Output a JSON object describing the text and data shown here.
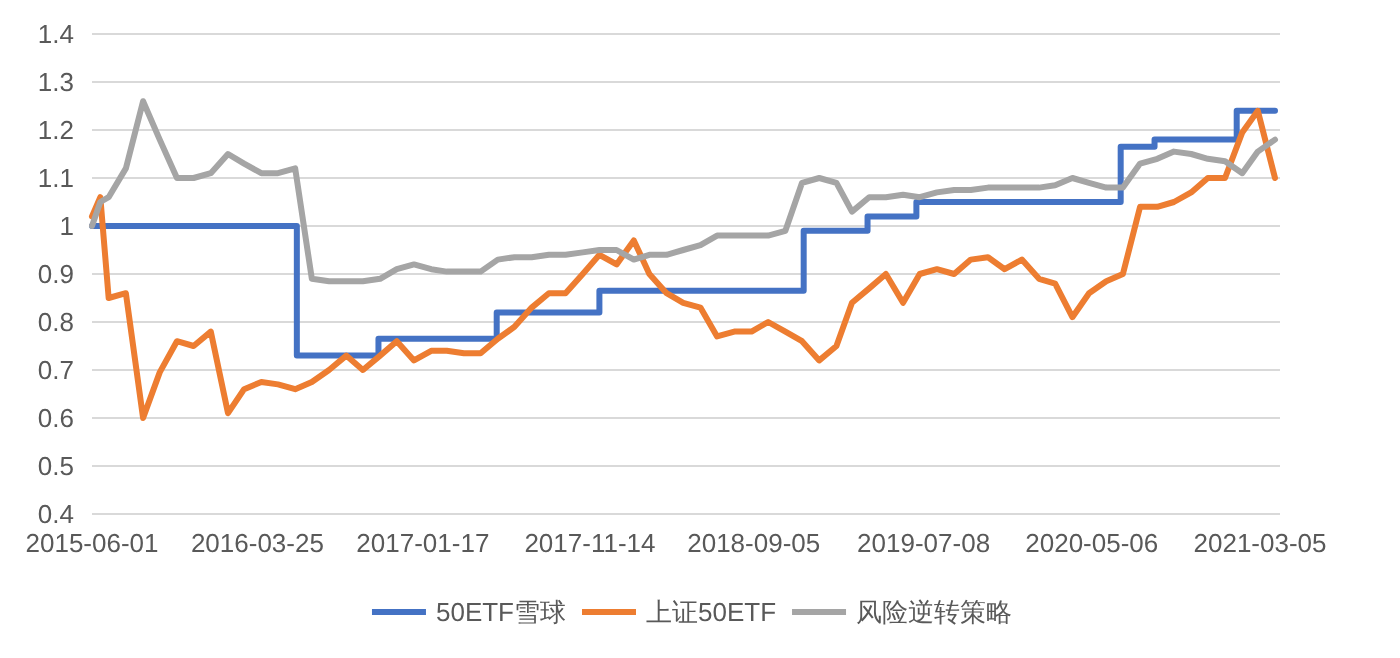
{
  "chart_data": {
    "type": "line",
    "x": [
      "2015-06-01",
      "2015-06-16",
      "2015-07-01",
      "2015-08-01",
      "2015-09-01",
      "2015-10-01",
      "2015-11-01",
      "2015-12-01",
      "2016-01-01",
      "2016-02-01",
      "2016-03-01",
      "2016-04-01",
      "2016-05-01",
      "2016-06-01",
      "2016-07-01",
      "2016-08-01",
      "2016-09-01",
      "2016-10-01",
      "2016-11-01",
      "2016-12-01",
      "2017-01-01",
      "2017-02-01",
      "2017-03-01",
      "2017-04-01",
      "2017-05-01",
      "2017-06-01",
      "2017-07-01",
      "2017-08-01",
      "2017-09-01",
      "2017-10-01",
      "2017-11-01",
      "2017-12-01",
      "2018-01-01",
      "2018-02-01",
      "2018-03-01",
      "2018-04-01",
      "2018-05-01",
      "2018-06-01",
      "2018-07-01",
      "2018-08-01",
      "2018-09-01",
      "2018-10-01",
      "2018-11-01",
      "2018-12-01",
      "2019-01-01",
      "2019-02-01",
      "2019-03-01",
      "2019-04-01",
      "2019-05-01",
      "2019-06-01",
      "2019-07-01",
      "2019-08-01",
      "2019-09-01",
      "2019-10-01",
      "2019-11-01",
      "2019-12-01",
      "2020-01-01",
      "2020-02-01",
      "2020-03-01",
      "2020-04-01",
      "2020-05-01",
      "2020-06-01",
      "2020-07-01",
      "2020-08-01",
      "2020-09-01",
      "2020-10-01",
      "2020-11-01",
      "2020-12-01",
      "2021-01-01",
      "2021-02-01",
      "2021-03-01",
      "2021-04-01"
    ],
    "series": [
      {
        "name": "50ETF雪球",
        "type": "step",
        "color": "#4472c4",
        "x": [
          "2015-06-01",
          "2016-06-04",
          "2016-10-29",
          "2017-05-30",
          "2017-12-01",
          "2018-12-04",
          "2019-03-29",
          "2019-06-25",
          "2020-06-27",
          "2020-08-27",
          "2021-01-22",
          "2021-04-01"
        ],
        "values": [
          1.0,
          0.73,
          0.765,
          0.82,
          0.865,
          0.99,
          1.02,
          1.05,
          1.165,
          1.18,
          1.24,
          1.24
        ]
      },
      {
        "name": "上证50ETF",
        "color": "#ed7d31",
        "values": [
          1.02,
          1.06,
          0.85,
          0.86,
          0.6,
          0.695,
          0.76,
          0.75,
          0.78,
          0.61,
          0.66,
          0.675,
          0.67,
          0.66,
          0.675,
          0.7,
          0.73,
          0.7,
          0.73,
          0.76,
          0.72,
          0.74,
          0.74,
          0.735,
          0.735,
          0.765,
          0.79,
          0.83,
          0.86,
          0.86,
          0.9,
          0.94,
          0.92,
          0.97,
          0.9,
          0.86,
          0.84,
          0.83,
          0.77,
          0.78,
          0.78,
          0.8,
          0.78,
          0.76,
          0.72,
          0.75,
          0.84,
          0.87,
          0.9,
          0.84,
          0.9,
          0.91,
          0.9,
          0.93,
          0.935,
          0.91,
          0.93,
          0.89,
          0.88,
          0.81,
          0.86,
          0.885,
          0.9,
          1.04,
          1.04,
          1.05,
          1.07,
          1.1,
          1.1,
          1.195,
          1.24,
          1.1
        ]
      },
      {
        "name": "风险逆转策略",
        "color": "#a5a5a5",
        "values": [
          1.0,
          1.05,
          1.06,
          1.12,
          1.26,
          1.18,
          1.1,
          1.1,
          1.11,
          1.15,
          1.13,
          1.11,
          1.11,
          1.12,
          0.89,
          0.885,
          0.885,
          0.885,
          0.89,
          0.91,
          0.92,
          0.91,
          0.905,
          0.905,
          0.905,
          0.93,
          0.935,
          0.935,
          0.94,
          0.94,
          0.945,
          0.95,
          0.95,
          0.93,
          0.94,
          0.94,
          0.95,
          0.96,
          0.98,
          0.98,
          0.98,
          0.98,
          0.99,
          1.09,
          1.1,
          1.09,
          1.03,
          1.06,
          1.06,
          1.065,
          1.06,
          1.07,
          1.075,
          1.075,
          1.08,
          1.08,
          1.08,
          1.08,
          1.085,
          1.1,
          1.09,
          1.08,
          1.08,
          1.13,
          1.14,
          1.155,
          1.15,
          1.14,
          1.135,
          1.11,
          1.155,
          1.18
        ]
      }
    ],
    "xlim": [
      "2015-06-01",
      "2021-04-10"
    ],
    "xticks": [
      "2015-06-01",
      "2016-03-25",
      "2017-01-17",
      "2017-11-14",
      "2018-09-05",
      "2019-07-08",
      "2020-05-06",
      "2021-03-05"
    ],
    "ylim": [
      0.4,
      1.4
    ],
    "yticks": [
      0.4,
      0.5,
      0.6,
      0.7,
      0.8,
      0.9,
      1,
      1.1,
      1.2,
      1.3,
      1.4
    ],
    "grid": "y",
    "legend": "bottom"
  }
}
